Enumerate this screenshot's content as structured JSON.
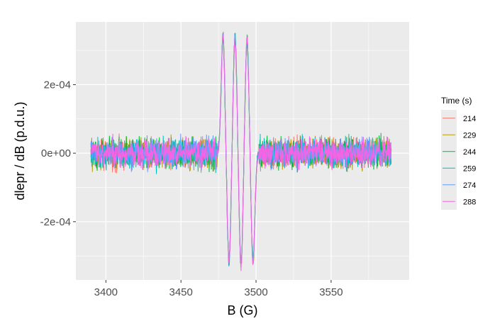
{
  "chart_data": {
    "type": "line",
    "title": "",
    "xlabel": "B (G)",
    "ylabel": "dlepr / dB (p.d.u.)",
    "xlim": [
      3380,
      3602
    ],
    "ylim": [
      -0.00037,
      0.000383
    ],
    "x_ticks": [
      3400,
      3450,
      3500,
      3550
    ],
    "x_tick_labels": [
      "3400",
      "3450",
      "3500",
      "3550"
    ],
    "y_ticks": [
      -0.0002,
      0,
      0.0002
    ],
    "y_tick_labels": [
      "-2e-04",
      "0e+00",
      "2e-04"
    ],
    "grid": true,
    "legend": {
      "title": "Time (s)",
      "position": "right"
    },
    "x_range_of_data": [
      3390,
      3590
    ],
    "noise_amplitude_approx": 4e-05,
    "peaks": [
      {
        "x": 3478,
        "y": 0.00034
      },
      {
        "x": 3486,
        "y": 0.00034
      },
      {
        "x": 3494,
        "y": 0.00033
      }
    ],
    "troughs": [
      {
        "x": 3482,
        "y": -0.00032
      },
      {
        "x": 3490,
        "y": -0.00033
      },
      {
        "x": 3498,
        "y": -0.00032
      }
    ],
    "series": [
      {
        "name": "214",
        "color": "#F8766D"
      },
      {
        "name": "229",
        "color": "#B79F00"
      },
      {
        "name": "244",
        "color": "#00BA38"
      },
      {
        "name": "259",
        "color": "#00BFC4"
      },
      {
        "name": "274",
        "color": "#619CFF"
      },
      {
        "name": "288",
        "color": "#F564E3"
      }
    ]
  }
}
